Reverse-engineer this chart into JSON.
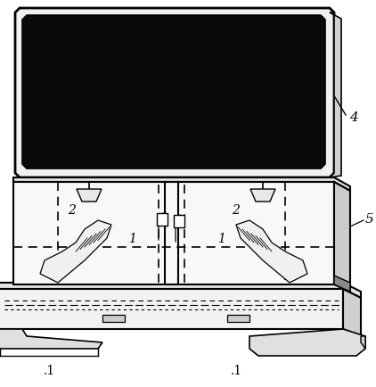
{
  "bg_color": "#ffffff",
  "line_color": "#000000",
  "figsize": [
    4.22,
    4.35
  ],
  "dpi": 100,
  "label_4": "4",
  "label_5": "5",
  "label_1": "1",
  "label_2": "2"
}
